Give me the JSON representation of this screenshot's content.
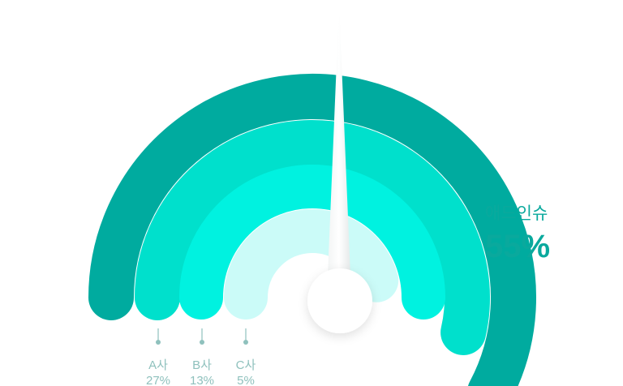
{
  "chart_data": {
    "type": "gauge",
    "series": [
      {
        "name": "애드인슈",
        "value": 55,
        "label": "55%",
        "color": "#00ab9f"
      },
      {
        "name": "A사",
        "value": 27,
        "label": "27%",
        "color": "#00e0cc"
      },
      {
        "name": "B사",
        "value": 13,
        "label": "13%",
        "color": "#00f2e0"
      },
      {
        "name": "C사",
        "value": 5,
        "label": "5%",
        "color": "#cbfbf8"
      }
    ],
    "needle_color": "#ffffff"
  }
}
